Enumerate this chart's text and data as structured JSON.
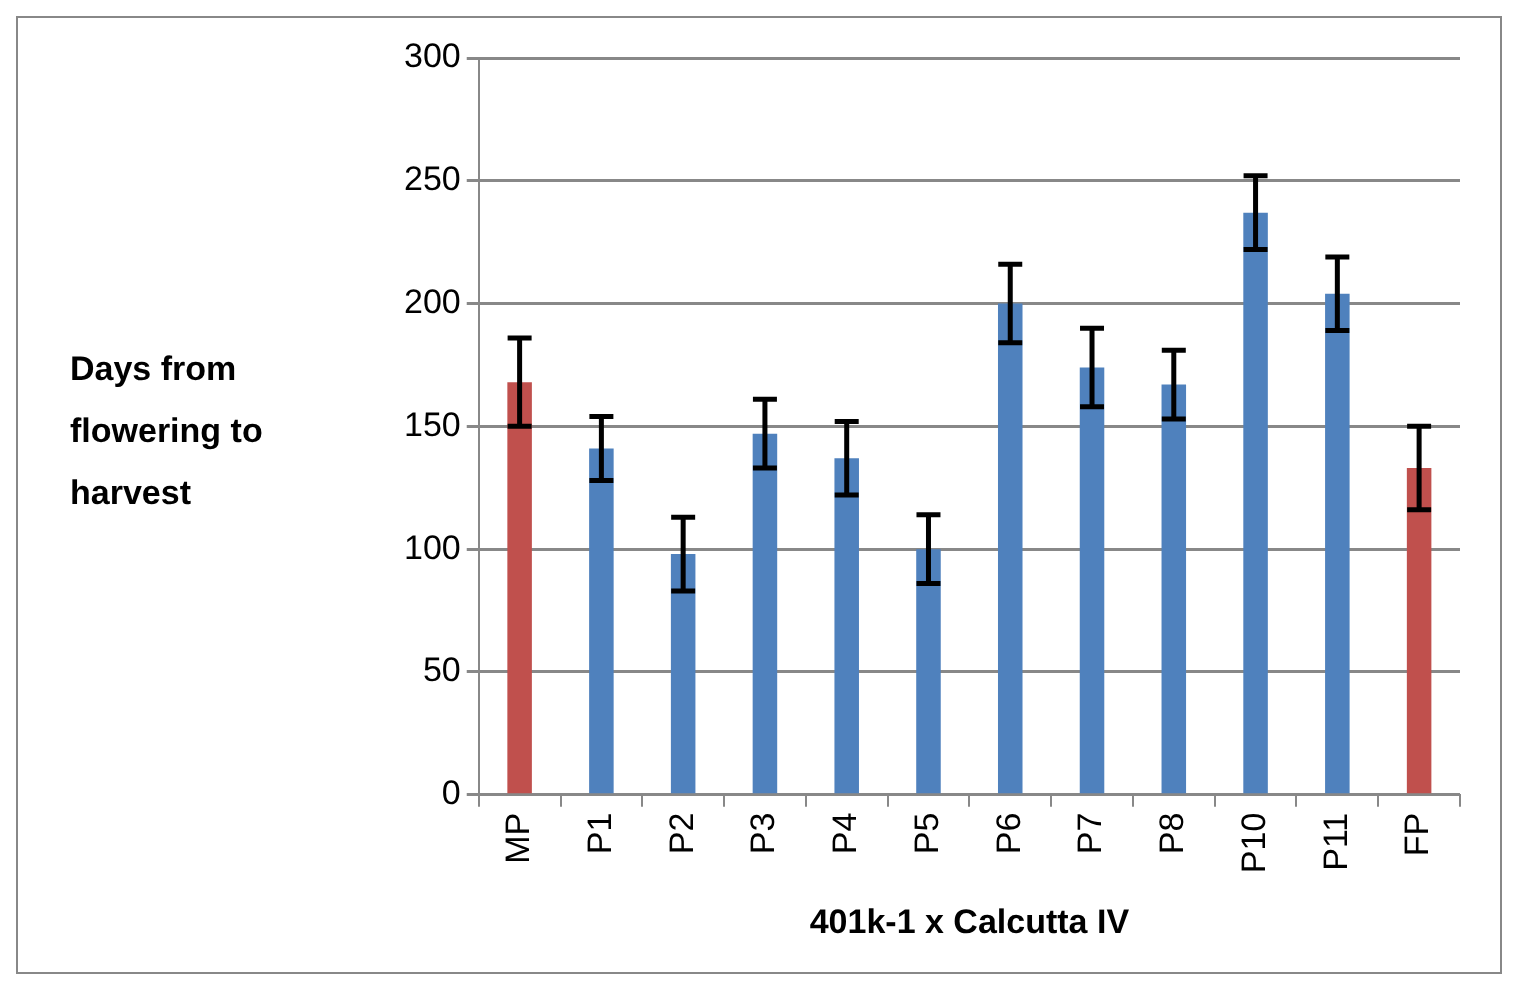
{
  "chart_data": {
    "type": "bar",
    "xlabel": "401k-1 x Calcutta IV",
    "ylabel": "Days from flowering to harvest",
    "categories": [
      "MP",
      "P1",
      "P2",
      "P3",
      "P4",
      "P5",
      "P6",
      "P7",
      "P8",
      "P10",
      "P11",
      "FP"
    ],
    "values": [
      168,
      141,
      98,
      147,
      137,
      100,
      200,
      174,
      167,
      237,
      204,
      133
    ],
    "errors": [
      18,
      13,
      15,
      14,
      15,
      14,
      16,
      16,
      14,
      15,
      15,
      17
    ],
    "colors": [
      "#c0504d",
      "#4f81bd",
      "#4f81bd",
      "#4f81bd",
      "#4f81bd",
      "#4f81bd",
      "#4f81bd",
      "#4f81bd",
      "#4f81bd",
      "#4f81bd",
      "#4f81bd",
      "#c0504d"
    ],
    "ylim": [
      0,
      300
    ],
    "yticks": [
      0,
      50,
      100,
      150,
      200,
      250,
      300
    ],
    "grid": "y",
    "legend": false
  }
}
